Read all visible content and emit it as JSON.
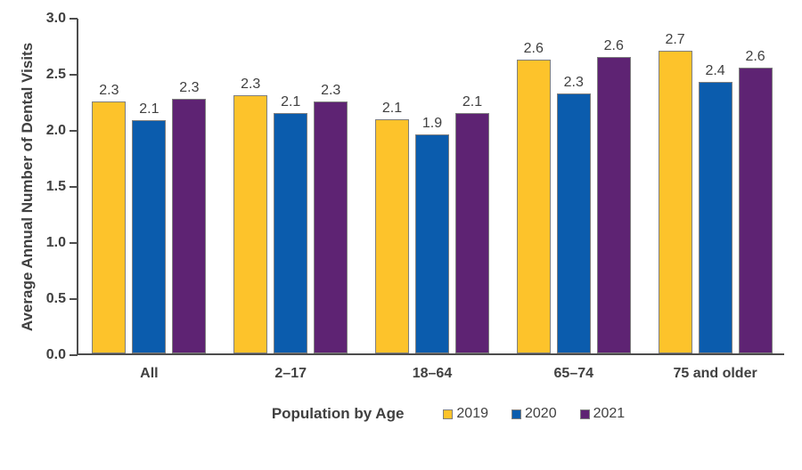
{
  "colors": {
    "axis": "#4d4d4d",
    "text": "#404040",
    "bar_border": "#7f7f7f",
    "series_2019": "#fdc32b",
    "series_2020": "#0b5cad",
    "series_2021": "#5e2373",
    "background": "#ffffff"
  },
  "chart_data": {
    "type": "bar",
    "title": "",
    "ylabel": "Average Annual Number of Dental Visits",
    "xlabel": "Population by Age",
    "categories": [
      "All",
      "2–17",
      "18–64",
      "65–74",
      "75 and older"
    ],
    "y_ticks": [
      "3.0",
      "2.5",
      "2.0",
      "1.5",
      "1.0",
      "0.5",
      "0.0"
    ],
    "ylim": [
      0,
      3.0
    ],
    "grid": false,
    "legend_position": "bottom",
    "series": [
      {
        "name": "2019",
        "color": "#fdc32b",
        "values": [
          2.3,
          2.3,
          2.1,
          2.6,
          2.7
        ],
        "bar_heights": [
          2.25,
          2.3,
          2.09,
          2.62,
          2.7
        ]
      },
      {
        "name": "2020",
        "color": "#0b5cad",
        "values": [
          2.1,
          2.1,
          1.9,
          2.3,
          2.4
        ],
        "bar_heights": [
          2.08,
          2.14,
          1.95,
          2.32,
          2.42
        ]
      },
      {
        "name": "2021",
        "color": "#5e2373",
        "values": [
          2.3,
          2.3,
          2.1,
          2.6,
          2.6
        ],
        "bar_heights": [
          2.27,
          2.25,
          2.14,
          2.64,
          2.55
        ]
      }
    ]
  }
}
